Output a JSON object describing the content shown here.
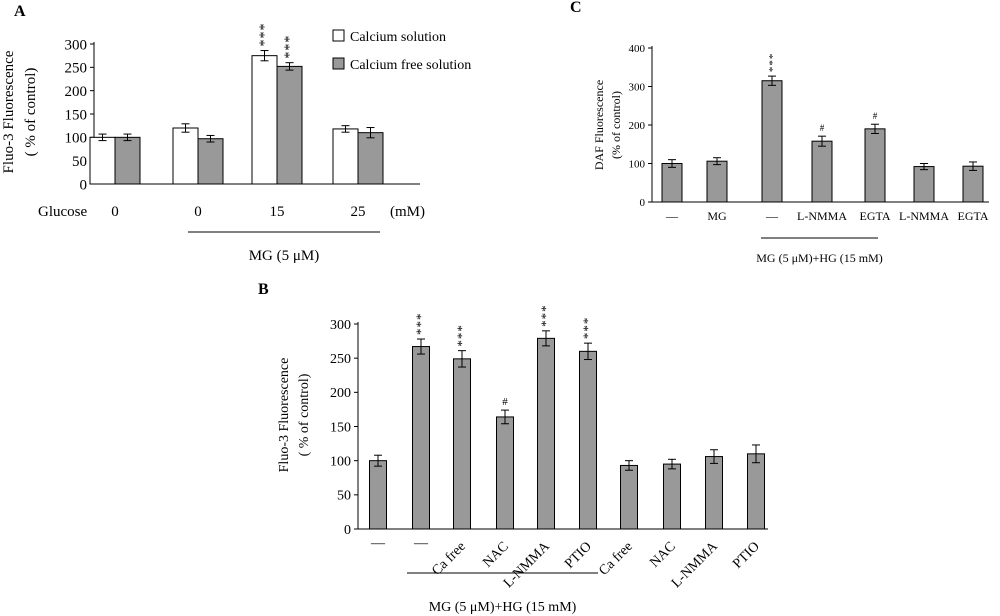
{
  "chart_data": [
    {
      "panel_label": "A",
      "type": "bar",
      "ylabel": [
        "Fluo-3 Fluorescence",
        "( % of control)"
      ],
      "yticks": [
        0,
        50,
        100,
        150,
        200,
        250,
        300
      ],
      "ylim": [
        0,
        300
      ],
      "xrow_label": "Glucose",
      "x_unit": "(mM)",
      "categories": [
        "0",
        "0",
        "15",
        "25"
      ],
      "series": [
        {
          "name": "Calcium solution",
          "fill": "#ffffff",
          "values": [
            100,
            120,
            275,
            118
          ],
          "errors": [
            7,
            9,
            11,
            7
          ],
          "annotations": [
            "",
            "",
            "***",
            ""
          ]
        },
        {
          "name": "Calcium free solution",
          "fill": "#999999",
          "values": [
            100,
            97,
            252,
            110
          ],
          "errors": [
            7,
            7,
            8,
            11
          ],
          "annotations": [
            "",
            "",
            "***",
            ""
          ]
        }
      ],
      "group_label": "MG (5 μM)",
      "legend_position": "top-right"
    },
    {
      "panel_label": "B",
      "type": "bar",
      "ylabel": [
        "Fluo-3 Fluorescence",
        "( % of control)"
      ],
      "yticks": [
        0,
        50,
        100,
        150,
        200,
        250,
        300
      ],
      "ylim": [
        0,
        300
      ],
      "categories": [
        "—",
        "—",
        "Ca free",
        "NAC",
        "L-NMMA",
        "PTIO",
        "Ca free",
        "NAC",
        "L-NMMA",
        "PTIO"
      ],
      "series": [
        {
          "name": "",
          "fill": "#999999",
          "values": [
            100,
            267,
            249,
            164,
            279,
            260,
            93,
            95,
            106,
            110
          ],
          "errors": [
            8,
            11,
            12,
            10,
            11,
            12,
            7,
            7,
            10,
            13
          ],
          "annotations": [
            "",
            "***",
            "***",
            "#",
            "***",
            "***",
            "",
            "",
            "",
            ""
          ]
        }
      ],
      "group_label": "MG (5 μM)+HG (15 mM)"
    },
    {
      "panel_label": "C",
      "type": "bar",
      "ylabel": [
        "DAF Fluorescence",
        "(% of control)"
      ],
      "yticks": [
        0,
        100,
        200,
        300,
        400
      ],
      "ylim": [
        0,
        400
      ],
      "categories": [
        "—",
        "MG",
        "—",
        "L-NMMA",
        "EGTA",
        "L-NMMA",
        "EGTA"
      ],
      "series": [
        {
          "name": "",
          "fill": "#999999",
          "values": [
            100,
            106,
            315,
            158,
            190,
            92,
            93
          ],
          "errors": [
            10,
            9,
            12,
            13,
            12,
            8,
            11
          ],
          "annotations": [
            "",
            "",
            "***",
            "#",
            "#",
            "",
            ""
          ]
        }
      ],
      "group_label": "MG (5 μM)+HG (15 mM)"
    }
  ]
}
